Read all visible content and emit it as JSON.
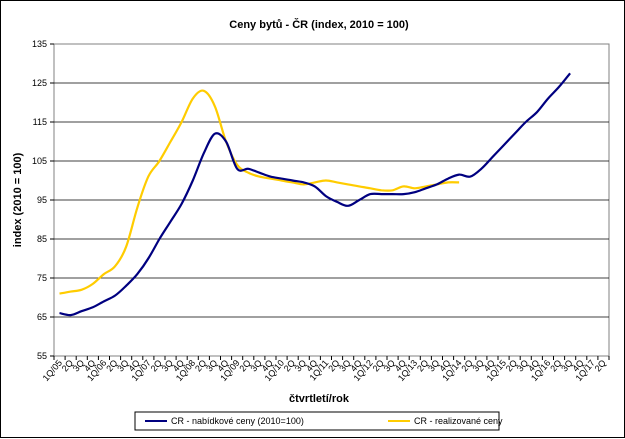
{
  "chart_data": {
    "type": "line",
    "title": "Ceny bytů  - ČR (index, 2010 = 100)",
    "xlabel": "čtvrtletí/rok",
    "ylabel": "index (2010 = 100)",
    "ylim": [
      55,
      135
    ],
    "yticks": [
      55,
      65,
      75,
      85,
      95,
      105,
      115,
      125,
      135
    ],
    "grid": "y-major",
    "legend_position": "bottom",
    "x_tick_labels": [
      "1Q/05",
      "2Q",
      "3Q",
      "4Q",
      "1Q/06",
      "2Q",
      "3Q",
      "4Q",
      "1Q/07",
      "2Q",
      "3Q",
      "4Q",
      "1Q/08",
      "2Q",
      "3Q",
      "4Q",
      "1Q/09",
      "2Q",
      "3Q",
      "4Q",
      "1Q/10",
      "2Q",
      "3Q",
      "4Q",
      "1Q/11",
      "2Q",
      "3Q",
      "4Q",
      "1Q/12",
      "2Q",
      "3Q",
      "4Q",
      "1Q/13",
      "2Q",
      "3Q",
      "4Q",
      "1Q/14",
      "2Q",
      "3Q",
      "4Q",
      "1Q/15",
      "2Q",
      "3Q",
      "4Q",
      "1Q/16",
      "2Q",
      "3Q",
      "4Q",
      "1Q/17",
      "2Q"
    ],
    "series": [
      {
        "name": "CR  - nabídkové ceny (2010=100)",
        "color": "#000080",
        "values": [
          66,
          65.5,
          66.5,
          67.5,
          69,
          70.5,
          73,
          76,
          80,
          85,
          89.5,
          94,
          100,
          107,
          112,
          110,
          103,
          103,
          102,
          101,
          100.5,
          100,
          99.5,
          98.5,
          96,
          94.5,
          93.5,
          95,
          96.5,
          96.5,
          96.5,
          96.5,
          97,
          98,
          99,
          100.5,
          101.5,
          101,
          103,
          106,
          109,
          112,
          115,
          117.5,
          121,
          124,
          127.5
        ]
      },
      {
        "name": "CR  - realizované ceny",
        "color": "#ffcc00",
        "values": [
          71,
          71.5,
          72,
          73.5,
          76,
          78,
          83,
          93,
          101,
          105,
          110,
          115,
          121,
          123,
          119,
          110,
          104,
          102,
          101,
          100.5,
          100,
          99.5,
          99,
          99.5,
          100,
          99.5,
          99,
          98.5,
          98,
          97.5,
          97.5,
          98.5,
          98,
          98.5,
          99,
          99.5,
          99.5
        ]
      }
    ]
  }
}
